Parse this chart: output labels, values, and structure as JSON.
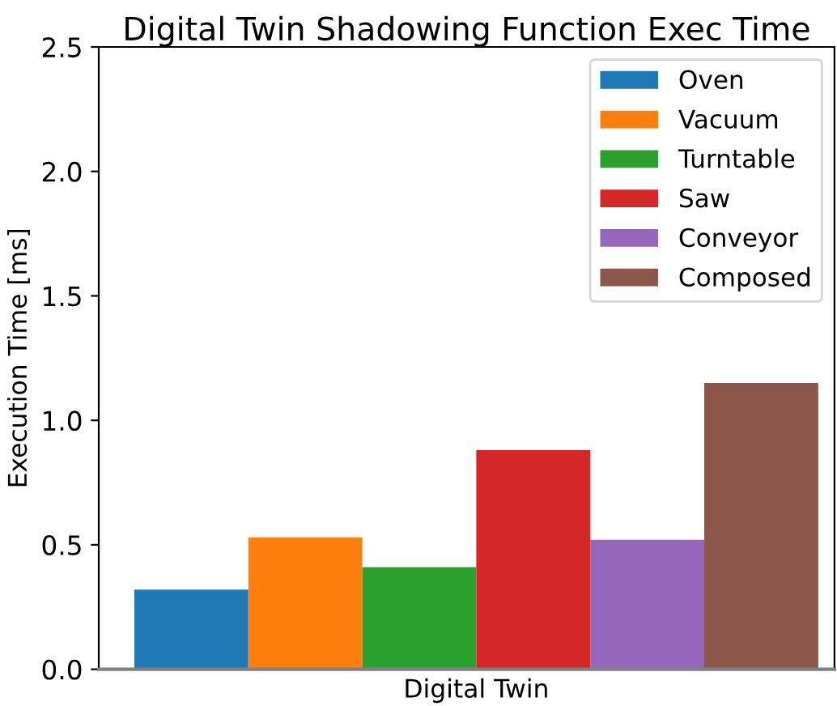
{
  "chart_data": {
    "type": "bar",
    "title": "Digital Twin Shadowing Function Exec Time",
    "ylabel": "Execution Time [ms]",
    "categories": [
      "Digital Twin"
    ],
    "series": [
      {
        "name": "Oven",
        "color": "#1f77b4",
        "values": [
          0.32
        ]
      },
      {
        "name": "Vacuum",
        "color": "#ff7f0e",
        "values": [
          0.53
        ]
      },
      {
        "name": "Turntable",
        "color": "#2ca02c",
        "values": [
          0.41
        ]
      },
      {
        "name": "Saw",
        "color": "#d62728",
        "values": [
          0.88
        ]
      },
      {
        "name": "Conveyor",
        "color": "#9467bd",
        "values": [
          0.52
        ]
      },
      {
        "name": "Composed",
        "color": "#8c564b",
        "values": [
          1.15
        ]
      }
    ],
    "ylim": [
      0,
      2.5
    ],
    "yticks": [
      {
        "value": 0,
        "label": "0.0"
      },
      0.5,
      {
        "value": 1,
        "label": "1.0"
      },
      1.5,
      {
        "value": 2,
        "label": "2.0"
      },
      2.5
    ],
    "grid": false,
    "legend": "top right"
  }
}
